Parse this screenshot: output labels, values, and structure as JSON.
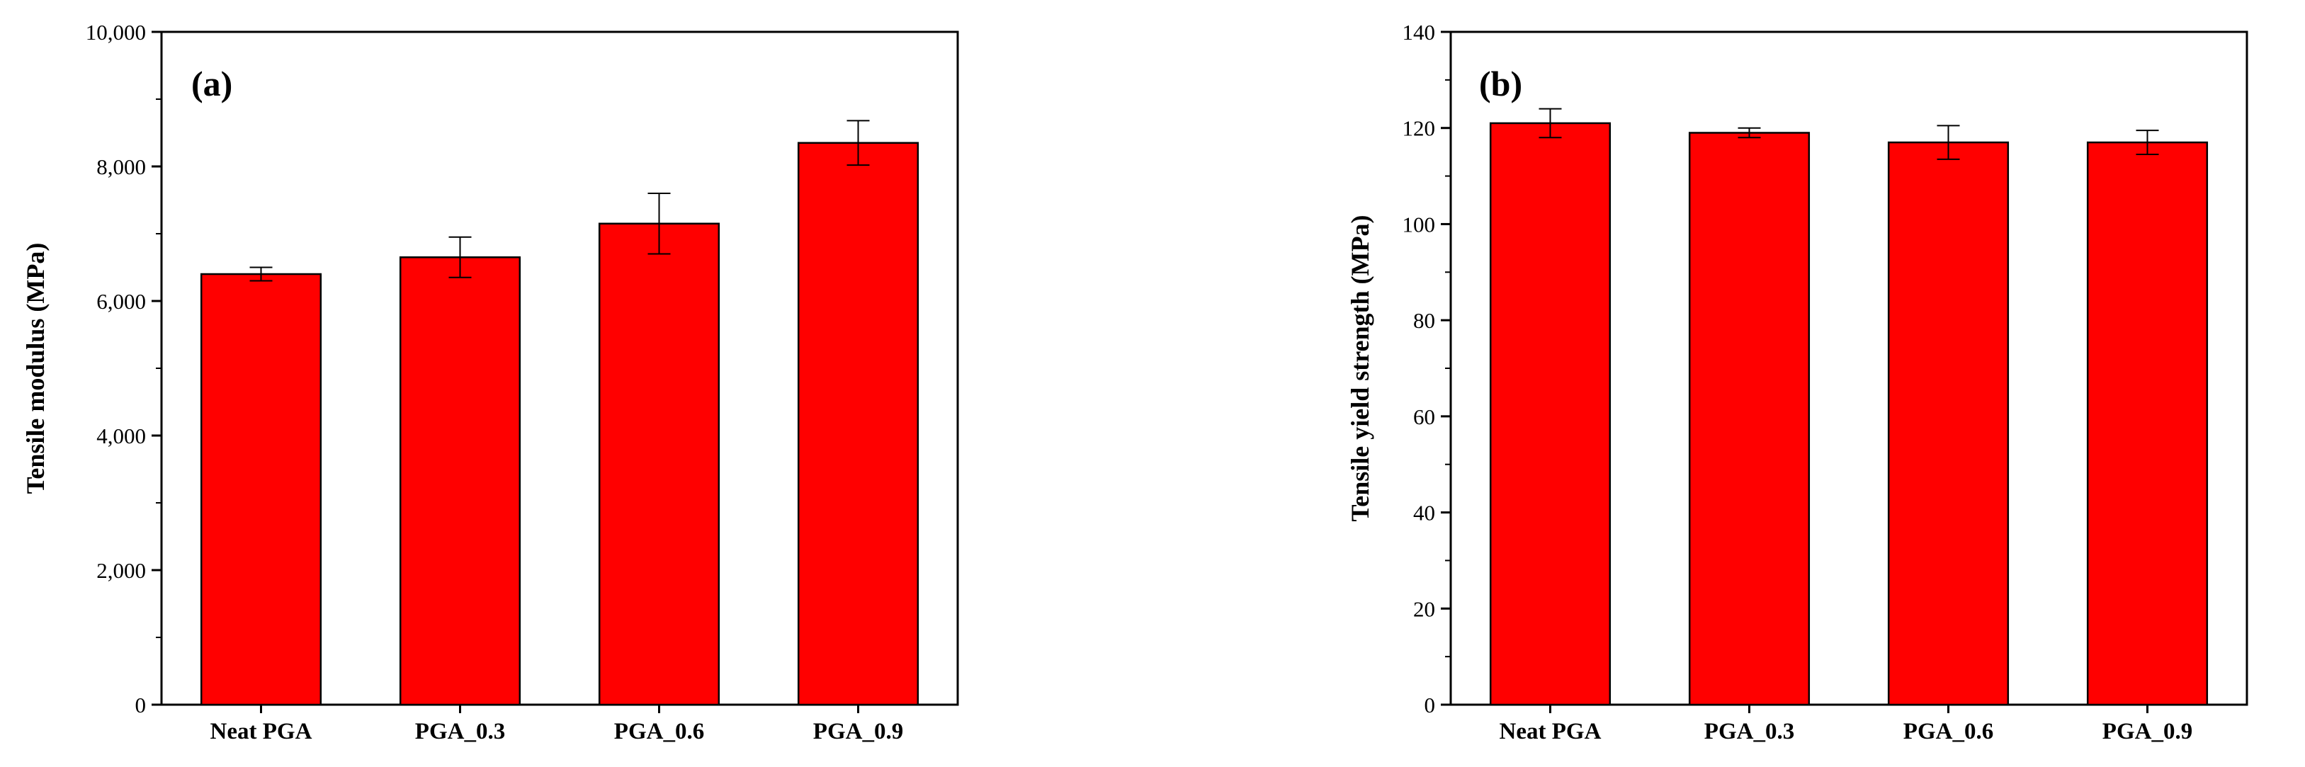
{
  "chart_data": [
    {
      "type": "bar",
      "panel_label": "(a)",
      "title": "",
      "xlabel": "",
      "ylabel": "Tensile modulus (MPa)",
      "categories": [
        "Neat PGA",
        "PGA_0.3",
        "PGA_0.6",
        "PGA_0.9"
      ],
      "values": [
        6400,
        6650,
        7150,
        8350
      ],
      "errors": [
        100,
        300,
        450,
        330
      ],
      "ylim": [
        0,
        10000
      ],
      "yticks": [
        0,
        2000,
        4000,
        6000,
        8000,
        10000
      ],
      "ytick_labels": [
        "0",
        "2,000",
        "4,000",
        "6,000",
        "8,000",
        "10,000"
      ],
      "grid": false,
      "bar_color": "#ff0000",
      "edge_color": "#000000"
    },
    {
      "type": "bar",
      "panel_label": "(b)",
      "title": "",
      "xlabel": "",
      "ylabel": "Tensile yield strength (MPa)",
      "categories": [
        "Neat PGA",
        "PGA_0.3",
        "PGA_0.6",
        "PGA_0.9"
      ],
      "values": [
        121,
        119,
        117,
        117
      ],
      "errors": [
        3,
        1,
        3.5,
        2.5
      ],
      "ylim": [
        0,
        140
      ],
      "yticks": [
        0,
        20,
        40,
        60,
        80,
        100,
        120,
        140
      ],
      "ytick_labels": [
        "0",
        "20",
        "40",
        "60",
        "80",
        "100",
        "120",
        "140"
      ],
      "grid": false,
      "bar_color": "#ff0000",
      "edge_color": "#000000"
    }
  ]
}
